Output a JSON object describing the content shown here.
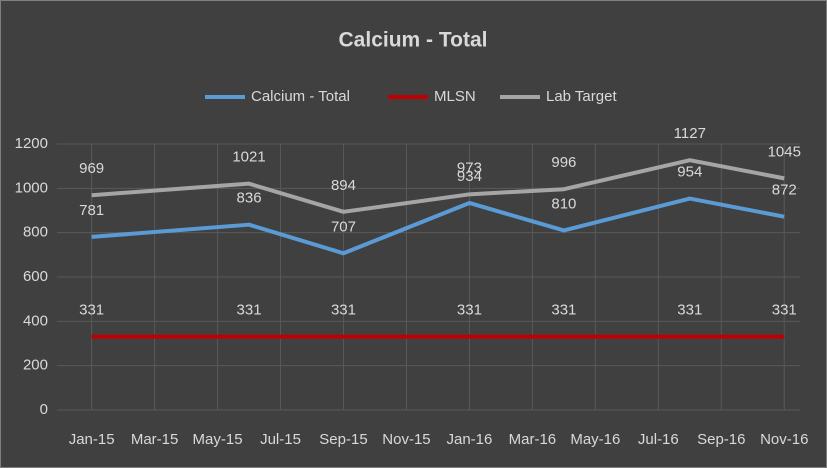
{
  "chart_data": {
    "type": "line",
    "title": "Calcium - Total",
    "x": [
      0,
      5,
      8,
      12,
      15,
      19,
      22
    ],
    "xlim": [
      -1.1,
      22.5
    ],
    "xticks": [
      {
        "value": 0,
        "label": "Jan-15"
      },
      {
        "value": 2,
        "label": "Mar-15"
      },
      {
        "value": 4,
        "label": "May-15"
      },
      {
        "value": 6,
        "label": "Jul-15"
      },
      {
        "value": 8,
        "label": "Sep-15"
      },
      {
        "value": 10,
        "label": "Nov-15"
      },
      {
        "value": 12,
        "label": "Jan-16"
      },
      {
        "value": 14,
        "label": "Mar-16"
      },
      {
        "value": 16,
        "label": "May-16"
      },
      {
        "value": 18,
        "label": "Jul-16"
      },
      {
        "value": 20,
        "label": "Sep-16"
      },
      {
        "value": 22,
        "label": "Nov-16"
      }
    ],
    "ylim": [
      0,
      1200
    ],
    "yticks": [
      0,
      200,
      400,
      600,
      800,
      1000,
      1200
    ],
    "grid": true,
    "legend": "top",
    "series": [
      {
        "name": "Calcium - Total",
        "color": "#5b9bd5",
        "values": [
          781,
          836,
          707,
          934,
          810,
          954,
          872
        ]
      },
      {
        "name": "MLSN",
        "color": "#c00000",
        "values": [
          331,
          331,
          331,
          331,
          331,
          331,
          331
        ]
      },
      {
        "name": "Lab Target",
        "color": "#a5a5a5",
        "values": [
          969,
          1021,
          894,
          973,
          996,
          1127,
          1045
        ]
      }
    ]
  }
}
